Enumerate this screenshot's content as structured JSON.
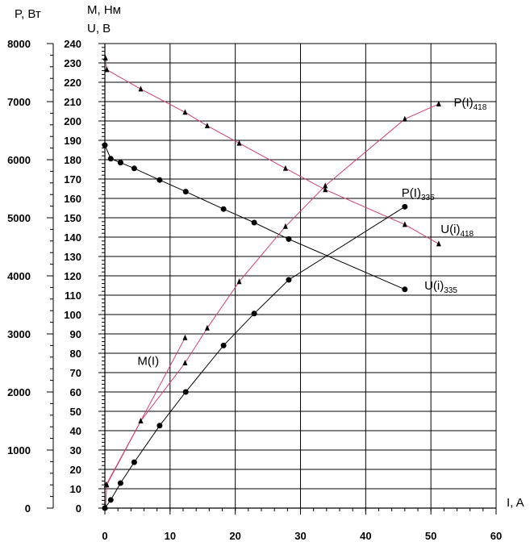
{
  "chart_data": {
    "type": "scatter",
    "title": "",
    "xlabel": "I, A",
    "ylabel_power": "P, Вт",
    "ylabel_torque": "М, Нм",
    "ylabel_voltage": "U, В",
    "xlim": [
      0,
      60
    ],
    "ylim_power": [
      0,
      8000
    ],
    "ylim_mu": [
      0,
      240
    ],
    "grid": true,
    "legend": "none",
    "x_ticks": [
      "0",
      "10",
      "20",
      "30",
      "40",
      "50",
      "60"
    ],
    "power_ticks": [
      "0",
      "1000",
      "2000",
      "3000",
      "4000",
      "5000",
      "6000",
      "7000",
      "8000"
    ],
    "mu_ticks": [
      "0",
      "10",
      "20",
      "30",
      "40",
      "50",
      "60",
      "70",
      "80",
      "90",
      "100",
      "110",
      "120",
      "130",
      "140",
      "150",
      "160",
      "170",
      "180",
      "190",
      "200",
      "210",
      "220",
      "230",
      "240"
    ],
    "colors": {
      "series_418": "#d04070",
      "series_335": "#000000",
      "grid": "#000000"
    },
    "series": [
      {
        "label": "U(i)",
        "subscript": "418",
        "axis": "mu",
        "marker": "triangle",
        "color": "#d04070",
        "x": [
          0.1,
          0.3,
          5.5,
          12.3,
          15.7,
          20.6,
          27.7,
          33.8,
          46.0,
          51.2
        ],
        "y": [
          232.5,
          226.5,
          216.5,
          204.5,
          197.5,
          188.5,
          175.5,
          164.5,
          146.5,
          136.5
        ]
      },
      {
        "label": "P(I)",
        "subscript": "418",
        "axis": "power",
        "marker": "triangle",
        "color": "#d04070",
        "x": [
          0.1,
          0.3,
          5.5,
          12.3,
          15.7,
          20.6,
          27.7,
          33.8,
          46.0,
          51.2
        ],
        "y": [
          20,
          400,
          1500,
          2500,
          3100,
          3900,
          4850,
          5550,
          6700,
          6960
        ]
      },
      {
        "label": "M(I)",
        "subscript": "",
        "axis": "mu",
        "marker": "triangle",
        "color": "#d04070",
        "x": [
          0.2,
          5.5,
          12.3
        ],
        "y": [
          12,
          45,
          88
        ]
      },
      {
        "label": "U(i)",
        "subscript": "335",
        "axis": "mu",
        "marker": "circle",
        "color": "#000000",
        "x": [
          0.0,
          0.9,
          2.4,
          4.5,
          8.4,
          12.4,
          18.2,
          22.9,
          28.2,
          46.0
        ],
        "y": [
          187.5,
          180.5,
          178.5,
          175.5,
          169.5,
          163.5,
          154.5,
          147.5,
          139.0,
          113.0
        ]
      },
      {
        "label": "P(I)",
        "subscript": "335",
        "axis": "power",
        "marker": "circle",
        "color": "#000000",
        "x": [
          0.0,
          0.9,
          2.4,
          4.5,
          8.4,
          12.4,
          18.2,
          22.9,
          28.2,
          46.0
        ],
        "y": [
          0,
          140,
          430,
          790,
          1420,
          2000,
          2800,
          3350,
          3930,
          5190
        ]
      }
    ],
    "curve_labels": [
      {
        "text": "P(I)",
        "sub": "418",
        "x": 53.5,
        "y_power": 6920
      },
      {
        "text": "P(I)",
        "sub": "335",
        "x": 45.5,
        "y_power": 5360
      },
      {
        "text": "U(i)",
        "sub": "418",
        "x": 51.5,
        "y_mu": 142
      },
      {
        "text": "U(i)",
        "sub": "335",
        "x": 49.0,
        "y_mu": 113
      },
      {
        "text": "M(I)",
        "sub": "",
        "x": 5.0,
        "y_mu": 74
      }
    ]
  }
}
